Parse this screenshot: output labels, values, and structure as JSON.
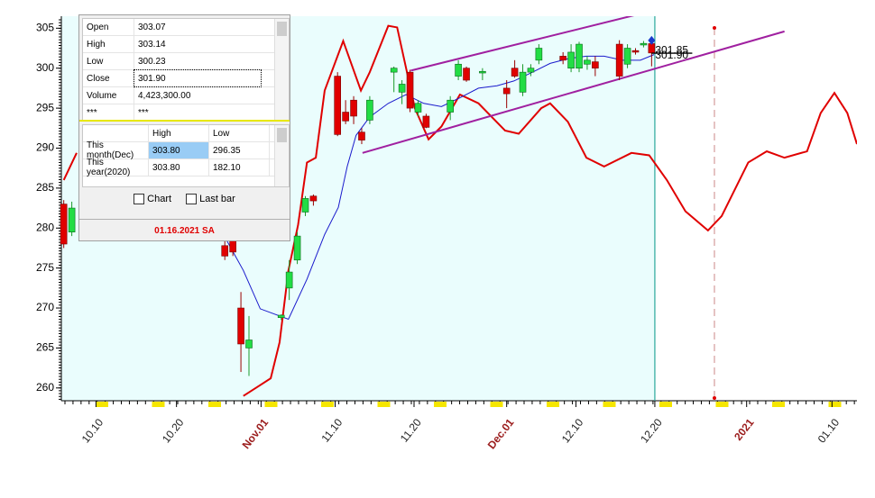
{
  "chart_data": {
    "type": "candlestick",
    "xlim": [
      -0.3,
      98.5
    ],
    "ylim": [
      258.4,
      306.5
    ],
    "yticks": [
      260,
      265,
      270,
      275,
      280,
      285,
      290,
      295,
      300,
      305
    ],
    "xticks": [
      {
        "value": 4,
        "label": "10.10"
      },
      {
        "value": 14,
        "label": "10.20"
      },
      {
        "value": 24.5,
        "label": "Nov.01",
        "color": "#9b1c1c"
      },
      {
        "value": 33.7,
        "label": "11.10"
      },
      {
        "value": 43.5,
        "label": "11.20"
      },
      {
        "value": 55,
        "label": "Dec.01",
        "color": "#9b1c1c"
      },
      {
        "value": 63.6,
        "label": "12.10"
      },
      {
        "value": 73.4,
        "label": "12.20"
      },
      {
        "value": 84.8,
        "label": "2021",
        "color": "#9b1c1c"
      },
      {
        "value": 95.4,
        "label": "01.10"
      }
    ],
    "up_color": "#22dd44",
    "down_color": "#e00000",
    "x": [
      0,
      1,
      20,
      21,
      22,
      23,
      27,
      28,
      29,
      30,
      31,
      34,
      35,
      36,
      37,
      38,
      41,
      42,
      43,
      44,
      45,
      48,
      49,
      50,
      52,
      55,
      56,
      57,
      58,
      59,
      62,
      63,
      64,
      65,
      66,
      69,
      70,
      71,
      72,
      73
    ],
    "open": [
      283,
      279.5,
      277.8,
      279,
      270,
      265,
      268.8,
      272.5,
      276,
      282,
      284,
      299,
      294.5,
      296,
      292,
      293.5,
      299.5,
      297,
      299.5,
      294.5,
      294,
      294.5,
      299,
      300,
      299.4,
      297.5,
      300,
      297,
      299.5,
      301,
      301.5,
      300,
      300,
      300.5,
      300.8,
      303,
      300.5,
      302.2,
      302.9,
      303.07
    ],
    "high": [
      283.5,
      283.3,
      278.5,
      279.5,
      272,
      269,
      269.2,
      276,
      279.5,
      284,
      284.2,
      299.5,
      296,
      296.5,
      292.5,
      296.5,
      300.2,
      298.5,
      299.8,
      296,
      294.3,
      296.5,
      301,
      300.2,
      300,
      298.5,
      301,
      300.5,
      300.5,
      303,
      302,
      303,
      303.3,
      301.5,
      301.5,
      303.5,
      303,
      302.5,
      303.4,
      303.14
    ],
    "low": [
      277.5,
      279,
      276,
      276.5,
      262,
      261.5,
      268.5,
      271,
      275.5,
      281.5,
      282.8,
      291.5,
      293,
      293,
      290.5,
      293,
      297,
      295.5,
      294.5,
      294,
      292.5,
      293.5,
      298.5,
      298.3,
      298.5,
      295,
      298.8,
      296.5,
      299,
      300.5,
      300.5,
      299.5,
      299.5,
      299.8,
      299,
      298.5,
      300,
      301.7,
      302.6,
      300.23
    ],
    "close": [
      278,
      282.5,
      276.5,
      277,
      265.5,
      266,
      269.1,
      274.5,
      279,
      283.7,
      283.4,
      291.7,
      293.4,
      294,
      291,
      296,
      300,
      298,
      295,
      295.6,
      292.6,
      296,
      300.5,
      298.5,
      299.6,
      296.8,
      299,
      299.5,
      300,
      302.5,
      301,
      302,
      303,
      301,
      300,
      299,
      302.5,
      302,
      303.1,
      301.9
    ],
    "overlays": [
      {
        "color": "#e00000",
        "width": 2,
        "x": [
          0,
          1.6,
          20.1,
          22.3,
          24.0,
          25.7,
          26.8,
          27.9,
          29.1,
          30.2,
          31.3,
          32.4,
          34.7,
          36.9,
          38.0,
          40.3,
          41.4,
          43.6,
          45.3,
          46.9,
          49.2,
          51.5,
          54.8,
          56.5,
          59.3,
          60.4,
          62.6,
          64.9,
          67.1,
          70.5,
          72.7,
          74.9,
          77.2,
          80.0,
          81.7,
          85.0,
          87.3,
          89.5,
          92.3,
          94.0,
          95.7,
          97.3,
          98.5
        ],
        "values": [
          286.0,
          289.4,
          null,
          259.0,
          260.1,
          261.2,
          265.7,
          274.7,
          280.4,
          288.2,
          288.8,
          297.2,
          303.4,
          297.2,
          299.5,
          305.3,
          305.1,
          295.0,
          291.1,
          292.7,
          296.7,
          295.6,
          292.2,
          291.8,
          295.0,
          295.6,
          293.3,
          288.8,
          287.7,
          289.4,
          289.1,
          286.0,
          282.1,
          279.7,
          281.5,
          288.2,
          289.6,
          288.8,
          289.6,
          294.4,
          296.9,
          294.4,
          290.5
        ]
      },
      {
        "color": "#1a1acc",
        "width": 1,
        "x": [
          20.1,
          22.3,
          24.4,
          27.9,
          30.2,
          32.4,
          34.1,
          35.2,
          36.3,
          38.0,
          40.3,
          42.5,
          44.7,
          46.9,
          49.2,
          51.5,
          53.8,
          55.9,
          58.2,
          60.4,
          62.7,
          64.9,
          67.1,
          69.4,
          71.6,
          73.3
        ],
        "values": [
          278.7,
          274.7,
          269.9,
          268.6,
          273.6,
          279.2,
          282.6,
          287.7,
          291.6,
          293.9,
          295.6,
          296.7,
          295.6,
          295.2,
          296.3,
          297.5,
          297.8,
          298.4,
          299.5,
          300.6,
          301.2,
          301.5,
          301.5,
          301.0,
          301.0,
          301.7
        ]
      },
      {
        "color": "#a020a0",
        "width": 2,
        "x": [
          43.1,
          78.4
        ],
        "values": [
          299.7,
          308.5
        ]
      },
      {
        "color": "#a020a0",
        "width": 2,
        "x": [
          37.1,
          89.5
        ],
        "values": [
          289.4,
          304.6
        ]
      }
    ],
    "cursor_x": 73.4,
    "cursor_color": "#2aa79b",
    "cycle_marker_x": 80.8,
    "last_values": [
      301.85,
      301.9
    ],
    "last_value_labels": [
      "301.85",
      "301.90"
    ]
  },
  "info_panel": {
    "quote_rows": [
      [
        "Open",
        "303.07"
      ],
      [
        "High",
        "303.14"
      ],
      [
        "Low",
        "300.23"
      ],
      [
        "Close",
        "301.90"
      ],
      [
        "Volume",
        "4,423,300.00"
      ],
      [
        "***",
        "***"
      ]
    ],
    "range_headers": [
      "High",
      "Low"
    ],
    "range_rows": [
      [
        "This month(Dec)",
        "303.80",
        "296.35"
      ],
      [
        "This year(2020)",
        "303.80",
        "182.10"
      ]
    ],
    "checkboxes": [
      "Chart",
      "Last bar"
    ],
    "date": "01.16.2021 SA"
  }
}
